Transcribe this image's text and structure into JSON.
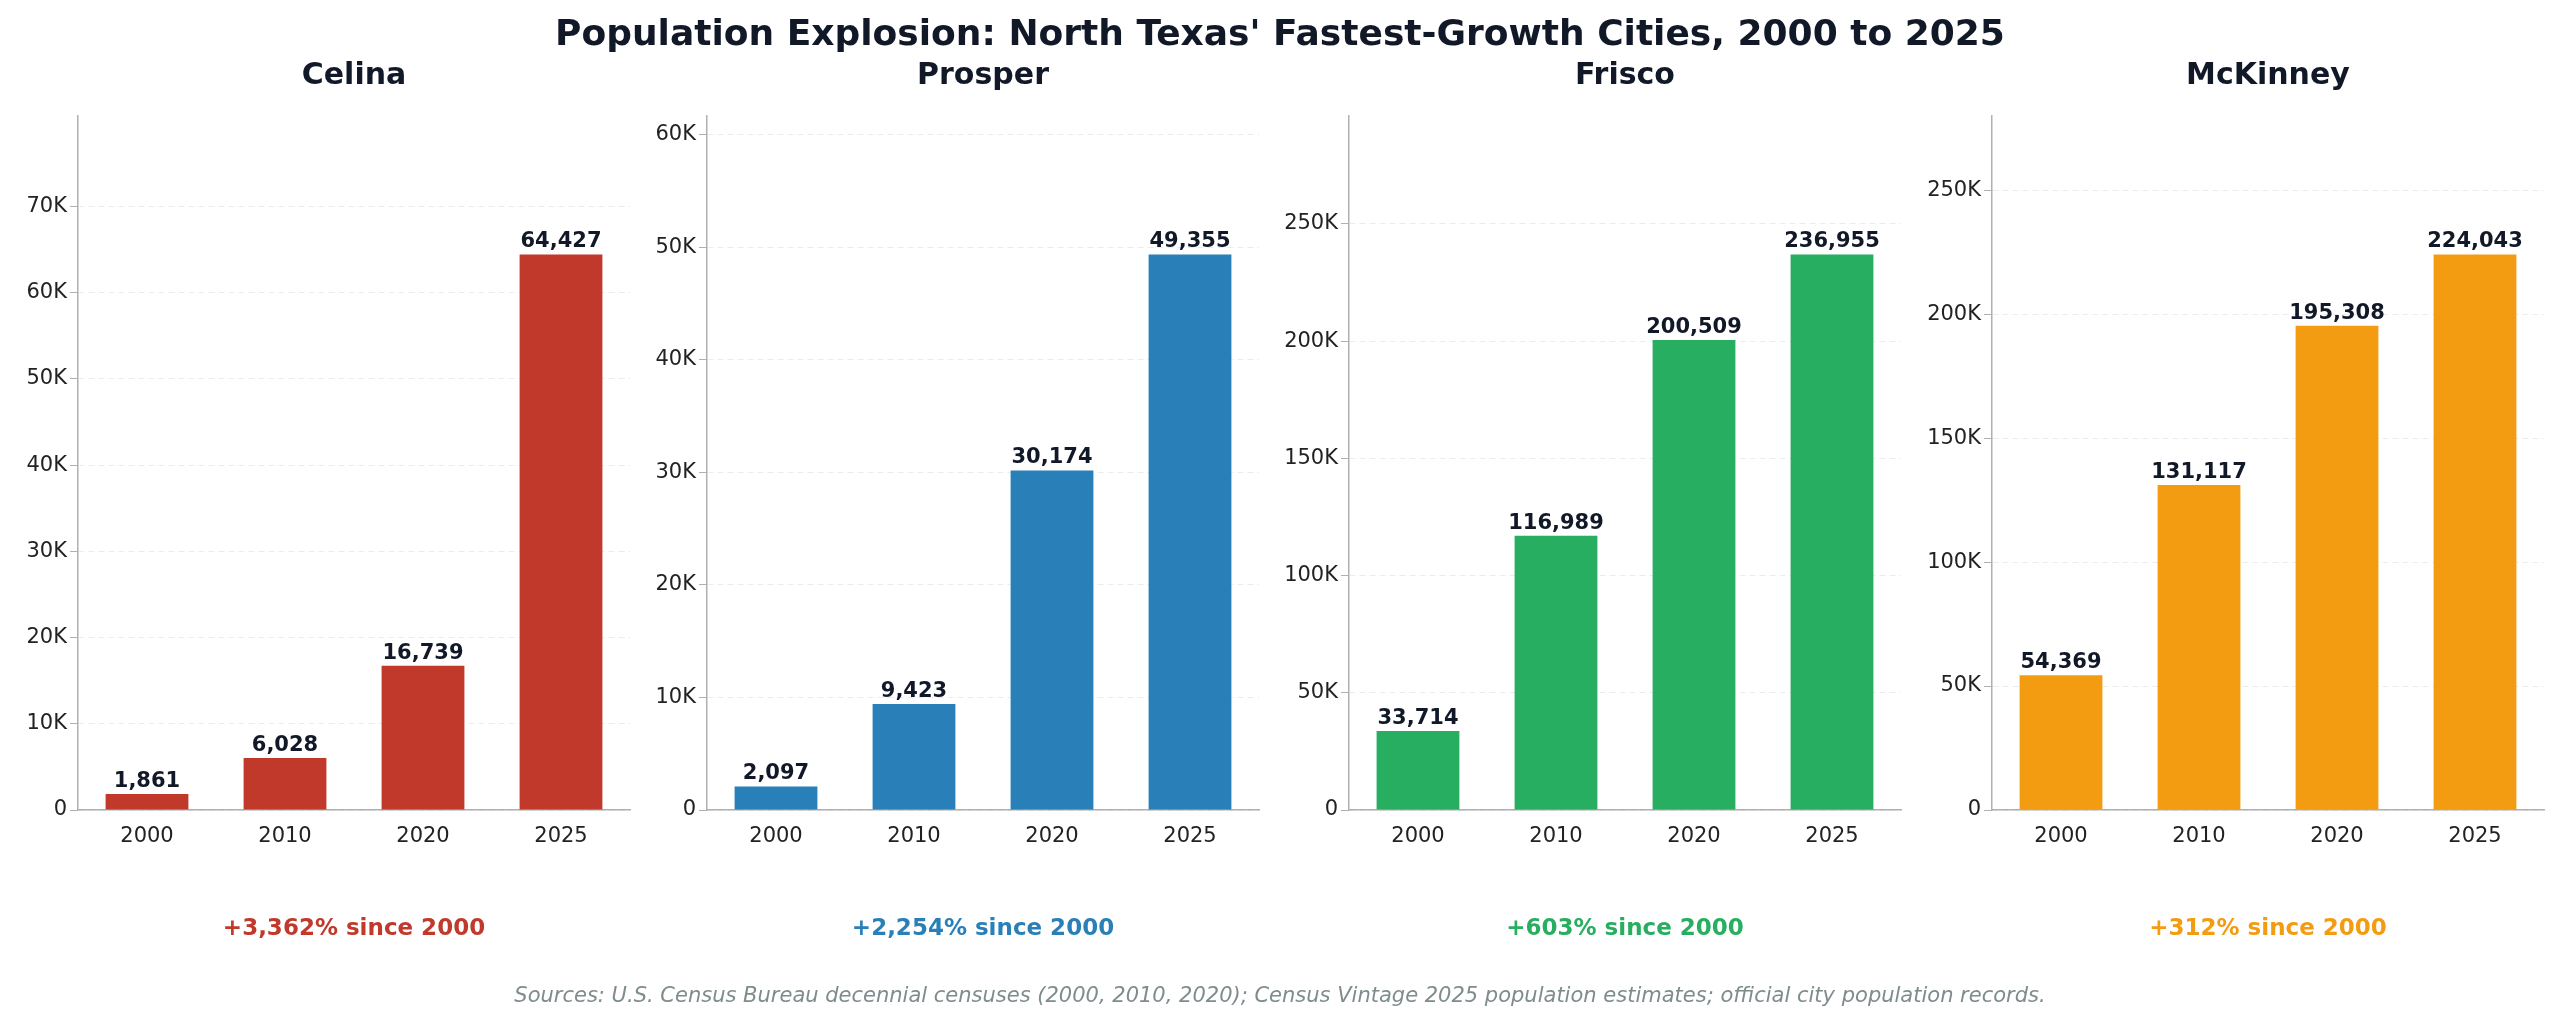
{
  "chart_data": [
    {
      "type": "bar",
      "title": "Celina",
      "categories": [
        "2000",
        "2010",
        "2020",
        "2025"
      ],
      "values": [
        1861,
        6028,
        16739,
        64427
      ],
      "color": "#c0392b",
      "ylim": [
        0,
        80534
      ],
      "yticks": [
        {
          "value": 0,
          "label": "0"
        },
        {
          "value": 10000,
          "label": "10K"
        },
        {
          "value": 20000,
          "label": "20K"
        },
        {
          "value": 30000,
          "label": "30K"
        },
        {
          "value": 40000,
          "label": "40K"
        },
        {
          "value": 50000,
          "label": "50K"
        },
        {
          "value": 60000,
          "label": "60K"
        },
        {
          "value": 70000,
          "label": "70K"
        }
      ],
      "grid": "y",
      "value_labels": [
        "1,861",
        "6,028",
        "16,739",
        "64,427"
      ],
      "annotations": [
        "+3,362% since 2000",
        "Population Explosion: North Texas' Fastest-Growth Cities, 2000 to 2025"
      ]
    },
    {
      "type": "bar",
      "title": "Prosper",
      "categories": [
        "2000",
        "2010",
        "2020",
        "2025"
      ],
      "values": [
        2097,
        9423,
        30174,
        49355
      ],
      "color": "#2980b9",
      "ylim": [
        0,
        61694
      ],
      "yticks": [
        {
          "value": 0,
          "label": "0"
        },
        {
          "value": 10000,
          "label": "10K"
        },
        {
          "value": 20000,
          "label": "20K"
        },
        {
          "value": 30000,
          "label": "30K"
        },
        {
          "value": 40000,
          "label": "40K"
        },
        {
          "value": 50000,
          "label": "50K"
        },
        {
          "value": 60000,
          "label": "60K"
        }
      ],
      "grid": "y",
      "value_labels": [
        "2,097",
        "9,423",
        "30,174",
        "49,355"
      ],
      "annotations": [
        "+2,254% since 2000"
      ]
    },
    {
      "type": "bar",
      "title": "Frisco",
      "categories": [
        "2000",
        "2010",
        "2020",
        "2025"
      ],
      "values": [
        33714,
        116989,
        200509,
        236955
      ],
      "color": "#27ae60",
      "ylim": [
        0,
        296194
      ],
      "yticks": [
        {
          "value": 0,
          "label": "0"
        },
        {
          "value": 50000,
          "label": "50K"
        },
        {
          "value": 100000,
          "label": "100K"
        },
        {
          "value": 150000,
          "label": "150K"
        },
        {
          "value": 200000,
          "label": "200K"
        },
        {
          "value": 250000,
          "label": "250K"
        }
      ],
      "grid": "y",
      "value_labels": [
        "33,714",
        "116,989",
        "200,509",
        "236,955"
      ],
      "annotations": [
        "+603% since 2000"
      ]
    },
    {
      "type": "bar",
      "title": "McKinney",
      "categories": [
        "2000",
        "2010",
        "2020",
        "2025"
      ],
      "values": [
        54369,
        131117,
        195308,
        224043
      ],
      "color": "#f39c12",
      "ylim": [
        0,
        280054
      ],
      "yticks": [
        {
          "value": 0,
          "label": "0"
        },
        {
          "value": 50000,
          "label": "50K"
        },
        {
          "value": 100000,
          "label": "100K"
        },
        {
          "value": 150000,
          "label": "150K"
        },
        {
          "value": 200000,
          "label": "200K"
        },
        {
          "value": 250000,
          "label": "250K"
        }
      ],
      "grid": "y",
      "value_labels": [
        "54,369",
        "131,117",
        "195,308",
        "224,043"
      ],
      "annotations": [
        "+312% since 2000",
        "Sources: U.S. Census Bureau decennial censuses (2000, 2010, 2020); Census Vintage 2025 population estimates; official city population records."
      ]
    }
  ]
}
